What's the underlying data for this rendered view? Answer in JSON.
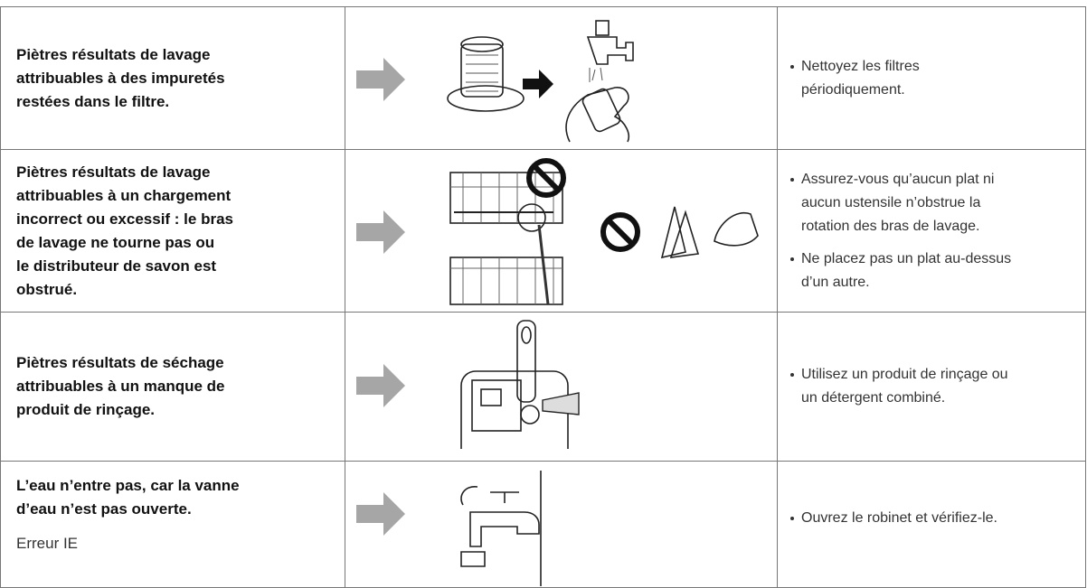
{
  "table": {
    "rows": [
      {
        "problem": [
          "Piètres résultats de lavage",
          "attribuables à des impuretés",
          "restées dans le filtre."
        ],
        "solutions": [
          [
            "Nettoyez les filtres",
            "périodiquement."
          ]
        ]
      },
      {
        "problem": [
          "Piètres résultats de lavage",
          "attribuables à un chargement",
          "incorrect ou excessif : le bras",
          "de lavage ne tourne pas ou",
          "le distributeur de savon est",
          "obstrué."
        ],
        "solutions": [
          [
            "Assurez-vous qu’aucun plat ni",
            "aucun ustensile n’obstrue la",
            "rotation des bras de lavage."
          ],
          [
            "Ne placez pas un plat au-dessus",
            "d’un autre."
          ]
        ]
      },
      {
        "problem": [
          "Piètres résultats de séchage",
          "attribuables à un manque de",
          "produit de rinçage."
        ],
        "solutions": [
          [
            "Utilisez un produit de rinçage ou",
            "un détergent combiné."
          ]
        ]
      },
      {
        "problem": [
          "L’eau n’entre pas, car la vanne",
          "d’eau n’est pas ouverte."
        ],
        "note": "Erreur IE",
        "solutions": [
          [
            "Ouvrez le robinet et vérifiez-le."
          ]
        ]
      }
    ]
  }
}
